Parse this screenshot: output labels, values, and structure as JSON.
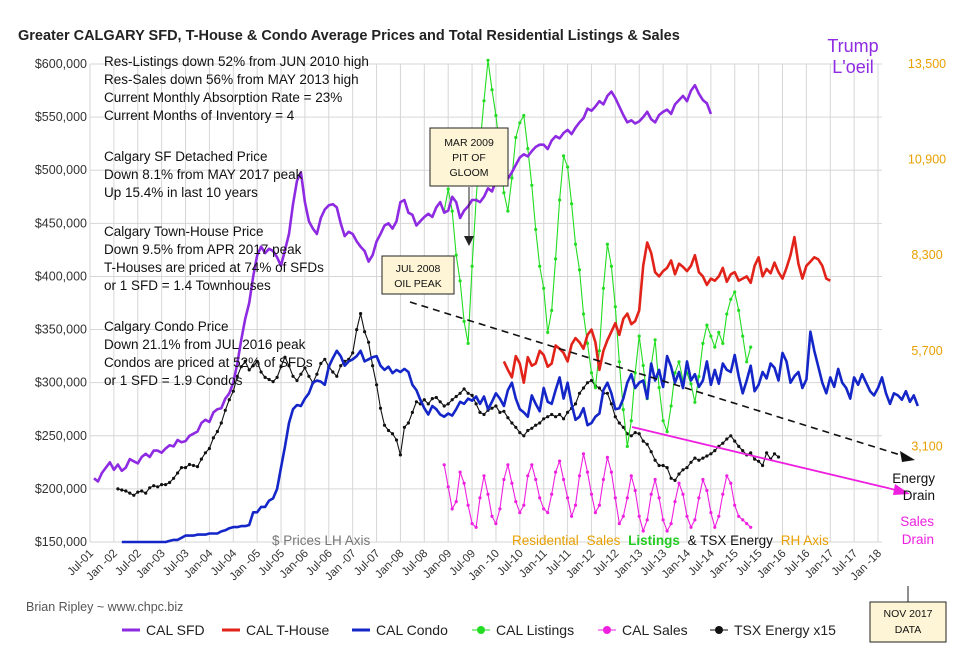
{
  "chart_data": {
    "type": "line",
    "title": "Greater CALGARY SFD, T-House & Condo Average Prices and Total Residential Listings & Sales",
    "left_axis": {
      "ylim": [
        150000,
        600000
      ],
      "ticks": [
        "$150,000",
        "$200,000",
        "$250,000",
        "$300,000",
        "$350,000",
        "$400,000",
        "$450,000",
        "$500,000",
        "$550,000",
        "$600,000"
      ]
    },
    "right_axis": {
      "ylim": [
        500,
        13500
      ],
      "ticks": [
        "3,100",
        "5,700",
        "8,300",
        "10,900",
        "13,500"
      ]
    },
    "x_ticks": [
      "Jul-01",
      "Jan -02",
      "Jul-02",
      "Jan-03",
      "Jul-03",
      "Jan-04",
      "Jul-04",
      "Jan -05",
      "Jul-05",
      "Jan-06",
      "Jul-06",
      "Jan -07",
      "Jul-07",
      "Jan-08",
      "Jul-08",
      "Jan-09",
      "Jul-09",
      "Jan -10",
      "Jul-10",
      "Jan-11",
      "Jul-11",
      "Jan-12",
      "Jul-12",
      "Jan-13",
      "Jul-13",
      "Jan-14",
      "Jul-14",
      "Jan-15",
      "Jul-15",
      "Jan-16",
      "Jul-16",
      "Jan-17",
      "Jul-17",
      "Jan -18"
    ],
    "grid": true,
    "series": [
      {
        "name": "CAL SFD",
        "color": "#8e2be2",
        "axis": "left",
        "start_index": 1,
        "values": [
          210000,
          207000,
          215000,
          220000,
          225000,
          218000,
          223000,
          217000,
          220000,
          228000,
          226000,
          224000,
          230000,
          233000,
          230000,
          236000,
          236000,
          234000,
          238000,
          241000,
          240000,
          246000,
          244000,
          245000,
          250000,
          252000,
          254000,
          262000,
          265000,
          263000,
          272000,
          275000,
          276000,
          285000,
          290000,
          300000,
          318000,
          340000,
          360000,
          375000,
          400000,
          420000,
          428000,
          422000,
          426000,
          424000,
          418000,
          410000,
          425000,
          440000,
          468000,
          490000,
          498000,
          470000,
          452000,
          445000,
          440000,
          455000,
          463000,
          467000,
          468000,
          465000,
          450000,
          438000,
          442000,
          440000,
          433000,
          428000,
          424000,
          414000,
          420000,
          433000,
          440000,
          448000,
          450000,
          445000,
          452000,
          470000,
          472000,
          460000,
          458000,
          448000,
          452000,
          456000,
          459000,
          456000,
          465000,
          470000,
          460000,
          462000,
          475000,
          470000,
          455000,
          462000,
          466000,
          472000,
          472000,
          470000,
          475000,
          483000,
          480000,
          490000,
          495000,
          500000,
          492000,
          498000,
          505000,
          512000,
          515000,
          513000,
          518000,
          522000,
          524000,
          524000,
          520000,
          528000,
          532000,
          530000,
          535000,
          538000,
          534000,
          540000,
          545000,
          549000,
          558000,
          556000,
          560000,
          565000,
          562000,
          570000,
          574000,
          568000,
          560000,
          552000,
          545000,
          547000,
          544000,
          546000,
          550000,
          555000,
          548000,
          545000,
          552000,
          555000,
          557000,
          553000,
          562000,
          566000,
          570000,
          565000,
          575000,
          580000,
          572000,
          566000,
          563000,
          553000
        ]
      },
      {
        "name": "CAL T-House",
        "color": "#e2231a",
        "axis": "left",
        "start_index": 104,
        "values": [
          320000,
          312000,
          305000,
          325000,
          318000,
          300000,
          324000,
          316000,
          318000,
          330000,
          326000,
          315000,
          318000,
          335000,
          332000,
          328000,
          320000,
          336000,
          342000,
          338000,
          332000,
          345000,
          350000,
          338000,
          312000,
          330000,
          340000,
          348000,
          356000,
          345000,
          360000,
          365000,
          355000,
          358000,
          368000,
          410000,
          432000,
          422000,
          404000,
          400000,
          405000,
          408000,
          415000,
          402000,
          412000,
          409000,
          405000,
          410000,
          420000,
          404000,
          400000,
          392000,
          398000,
          396000,
          400000,
          408000,
          395000,
          402000,
          404000,
          396000,
          398000,
          400000,
          394000,
          410000,
          418000,
          400000,
          407000,
          403000,
          413000,
          404000,
          398000,
          408000,
          420000,
          437000,
          412000,
          398000,
          410000,
          414000,
          418000,
          416000,
          410000,
          398000,
          396000
        ]
      },
      {
        "name": "CAL Condo",
        "color": "#1426c8",
        "axis": "left",
        "start_index": 8,
        "values": [
          150000,
          150000,
          150000,
          150000,
          150000,
          150000,
          150000,
          150000,
          150000,
          150000,
          150000,
          150000,
          151000,
          152000,
          152000,
          154000,
          156000,
          156000,
          156000,
          157000,
          157000,
          157000,
          158000,
          158000,
          158000,
          160000,
          161000,
          163000,
          164000,
          164000,
          165000,
          165000,
          166000,
          178000,
          178000,
          183000,
          183000,
          189000,
          191000,
          200000,
          220000,
          240000,
          262000,
          275000,
          279000,
          278000,
          285000,
          290000,
          300000,
          302000,
          301000,
          298000,
          315000,
          323000,
          330000,
          325000,
          316000,
          320000,
          322000,
          325000,
          330000,
          320000,
          322000,
          324000,
          325000,
          316000,
          312000,
          315000,
          309000,
          312000,
          310000,
          313000,
          310000,
          298000,
          293000,
          284000,
          276000,
          270000,
          278000,
          275000,
          270000,
          268000,
          271000,
          269000,
          275000,
          282000,
          280000,
          285000,
          283000,
          287000,
          280000,
          287000,
          275000,
          282000,
          290000,
          285000,
          278000,
          293000,
          300000,
          285000,
          275000,
          272000,
          268000,
          288000,
          280000,
          273000,
          295000,
          282000,
          280000,
          293000,
          305000,
          285000,
          300000,
          280000,
          265000,
          268000,
          276000,
          260000,
          262000,
          268000,
          271000,
          293000,
          300000,
          290000,
          275000,
          276000,
          285000,
          300000,
          308000,
          295000,
          300000,
          302000,
          285000,
          318000,
          302000,
          312000,
          296000,
          325000,
          315000,
          300000,
          310000,
          295000,
          320000,
          302000,
          308000,
          296000,
          302000,
          320000,
          298000,
          312000,
          299000,
          318000,
          312000,
          310000,
          326000,
          306000,
          290000,
          302000,
          316000,
          292000,
          298000,
          310000,
          304000,
          318000,
          314000,
          302000,
          328000,
          320000,
          300000,
          306000,
          310000,
          295000,
          303000,
          348000,
          330000,
          315000,
          300000,
          290000,
          305000,
          296000,
          313000,
          300000,
          295000,
          285000,
          305000,
          298000,
          308000,
          300000,
          292000,
          288000,
          295000,
          305000,
          290000,
          280000,
          290000,
          288000,
          284000,
          292000,
          282000,
          288000,
          278000
        ]
      },
      {
        "name": "CAL Listings",
        "color": "#22dd22",
        "axis": "right",
        "start_index": 89,
        "values": [
          9500,
          10100,
          9500,
          8300,
          7600,
          6500,
          5900,
          8000,
          9800,
          11300,
          12500,
          13600,
          12800,
          12100,
          11200,
          10000,
          9500,
          10400,
          11500,
          11900,
          12100,
          11200,
          10200,
          9000,
          8000,
          7400,
          6200,
          6800,
          8200,
          9800,
          11000,
          10700,
          9700,
          8600,
          7900,
          6700,
          5900,
          5100,
          4700,
          5700,
          7400,
          8600,
          8000,
          6900,
          5400,
          4100,
          3100,
          3800,
          5100,
          6100,
          5300,
          4400,
          5300,
          6000,
          4700,
          3800,
          3500,
          4200,
          5100,
          5400,
          4900,
          5100,
          4800,
          4300,
          5000,
          5900,
          6400,
          6100,
          5800,
          6200,
          5900,
          6700,
          7100,
          7300,
          6800,
          6100,
          5400,
          5800
        ]
      },
      {
        "name": "CAL Sales",
        "color": "#ee20e0",
        "axis": "right",
        "start_index": 89,
        "values": [
          2600,
          2000,
          1400,
          1600,
          2400,
          2100,
          1500,
          1000,
          900,
          1700,
          2300,
          1800,
          1200,
          1000,
          1400,
          2200,
          2600,
          2100,
          1600,
          1300,
          1500,
          2300,
          2600,
          2200,
          1700,
          1400,
          1300,
          1800,
          2400,
          2700,
          2200,
          1700,
          1200,
          1500,
          2300,
          2900,
          2400,
          1800,
          1300,
          1500,
          2200,
          2800,
          2400,
          1700,
          1000,
          1200,
          1700,
          2300,
          1900,
          1200,
          800,
          1100,
          1800,
          2200,
          1700,
          1100,
          800,
          1000,
          1600,
          2100,
          1800,
          1200,
          900,
          1100,
          1700,
          2200,
          1900,
          1300,
          900,
          1200,
          1800,
          2300,
          2100,
          1500,
          1200,
          1100,
          1000,
          900
        ]
      },
      {
        "name": "TSX Energy x15",
        "color": "#111111",
        "axis": "left",
        "start_index": 7,
        "values": [
          200000,
          199000,
          198000,
          196000,
          194000,
          197000,
          198000,
          196000,
          201000,
          203000,
          202000,
          204000,
          204000,
          206000,
          210000,
          215000,
          220000,
          220000,
          223000,
          222000,
          221000,
          228000,
          234000,
          238000,
          248000,
          254000,
          262000,
          274000,
          284000,
          292000,
          306000,
          315000,
          320000,
          312000,
          316000,
          320000,
          310000,
          305000,
          303000,
          301000,
          305000,
          315000,
          324000,
          316000,
          306000,
          302000,
          308000,
          314000,
          306000,
          300000,
          308000,
          318000,
          322000,
          315000,
          310000,
          306000,
          316000,
          320000,
          322000,
          328000,
          350000,
          365000,
          348000,
          338000,
          316000,
          298000,
          276000,
          260000,
          255000,
          252000,
          246000,
          232000,
          258000,
          262000,
          272000,
          282000,
          280000,
          284000,
          280000,
          285000,
          286000,
          282000,
          278000,
          280000,
          284000,
          287000,
          290000,
          294000,
          290000,
          288000,
          280000,
          272000,
          270000,
          274000,
          276000,
          278000,
          272000,
          273000,
          267000,
          262000,
          258000,
          253000,
          250000,
          255000,
          257000,
          260000,
          262000,
          266000,
          268000,
          270000,
          268000,
          270000,
          266000,
          272000,
          276000,
          280000,
          290000,
          295000,
          300000,
          302000,
          297000,
          295000,
          290000,
          290000,
          280000,
          268000,
          262000,
          258000,
          252000,
          250000,
          253000,
          252000,
          245000,
          242000,
          235000,
          227000,
          222000,
          222000,
          220000,
          210000,
          208000,
          214000,
          218000,
          220000,
          225000,
          229000,
          227000,
          229000,
          231000,
          233000,
          236000,
          240000,
          243000,
          247000,
          250000,
          245000,
          240000,
          236000,
          232000,
          234000,
          228000,
          226000,
          222000,
          234000,
          228000,
          233000,
          230000
        ]
      }
    ]
  },
  "annotations": {
    "stats": [
      "Res-Listings down 52% from JUN 2010 high",
      "Res-Sales down 56% from MAY 2013 high",
      "Current Monthly Absorption Rate = 23%",
      "Current Months of Inventory = 4"
    ],
    "sfd": [
      "Calgary SF Detached Price",
      "Down 8.1% from MAY 2017 peak",
      "Up 15.4% in last 10 years"
    ],
    "th": [
      "Calgary Town-House Price",
      "Down 9.5% from APR 2017 peak",
      "T-Houses are priced at 74% of SFDs",
      "or 1 SFD = 1.4 Townhouses"
    ],
    "condo": [
      "Calgary Condo Price",
      "Down 21.1% from JUL 2016 peak",
      "Condos are priced at 52% of SFDs",
      "or 1 SFD = 1.9 Condos"
    ],
    "mar2009": [
      "MAR 2009",
      "PIT OF",
      "GLOOM"
    ],
    "jul2008": [
      "JUL 2008",
      "OIL PEAK"
    ],
    "nov2017": [
      "NOV 2017",
      "DATA"
    ],
    "trump": [
      "Trump",
      "L'oeil"
    ],
    "energy_drain": [
      "Energy",
      "Drain"
    ],
    "sales_drain": [
      "Sales",
      "Drain"
    ],
    "lh_axis": "$ Prices LH Axis",
    "axis_note": {
      "res": "Residential",
      "sales": "Sales",
      "listings": "Listings",
      "tsx": "& TSX Energy",
      "rh": "RH Axis"
    }
  },
  "credit": "Brian Ripley ~ www.chpc.biz",
  "legend": [
    {
      "label": "CAL SFD",
      "color": "#8e2be2",
      "style": "line"
    },
    {
      "label": "CAL T-House",
      "color": "#e2231a",
      "style": "line"
    },
    {
      "label": "CAL Condo",
      "color": "#1426c8",
      "style": "line"
    },
    {
      "label": "CAL Listings",
      "color": "#22dd22",
      "style": "dot"
    },
    {
      "label": "CAL Sales",
      "color": "#ee20e0",
      "style": "dot"
    },
    {
      "label": "TSX Energy x15",
      "color": "#111111",
      "style": "dot"
    }
  ]
}
